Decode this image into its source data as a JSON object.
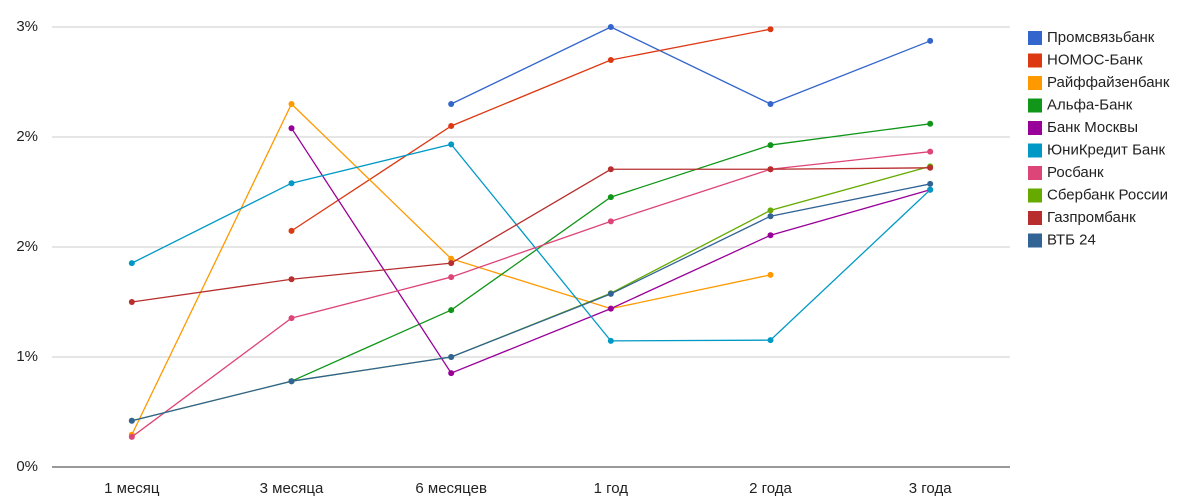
{
  "chart_data": {
    "type": "line",
    "categories": [
      "1 месяц",
      "3 месяца",
      "6 месяцев",
      "1 год",
      "2 года",
      "3 года"
    ],
    "ylim": [
      0,
      3
    ],
    "yticks": [
      {
        "value": 0,
        "label": "0%"
      },
      {
        "value": 0.75,
        "label": "1%"
      },
      {
        "value": 1.5,
        "label": "2%"
      },
      {
        "value": 2.25,
        "label": "2%"
      },
      {
        "value": 3,
        "label": "3%"
      }
    ],
    "grid": true,
    "legend": "right",
    "series": [
      {
        "name": "Промсвязьбанк",
        "color": "#3366cc",
        "values": [
          null,
          null,
          2.475,
          3.0,
          2.475,
          2.905
        ]
      },
      {
        "name": "НОМОС-Банк",
        "color": "#dc3912",
        "values": [
          null,
          1.61,
          2.325,
          2.775,
          2.985,
          null
        ]
      },
      {
        "name": "Райффайзенбанк",
        "color": "#ff9900",
        "values": [
          0.22,
          2.475,
          1.42,
          1.08,
          1.31,
          null
        ]
      },
      {
        "name": "Альфа-Банк",
        "color": "#109618",
        "values": [
          null,
          0.585,
          1.07,
          1.84,
          2.195,
          2.34
        ]
      },
      {
        "name": "Банк Москвы",
        "color": "#990099",
        "values": [
          null,
          2.31,
          0.64,
          1.08,
          1.58,
          1.89
        ]
      },
      {
        "name": "ЮниКредит Банк",
        "color": "#0099c6",
        "values": [
          1.39,
          1.935,
          2.2,
          0.86,
          0.865,
          1.89
        ]
      },
      {
        "name": "Росбанк",
        "color": "#dd4477",
        "values": [
          0.205,
          1.015,
          1.295,
          1.675,
          2.03,
          2.15
        ]
      },
      {
        "name": "Сбербанк России",
        "color": "#66aa00",
        "values": [
          0.315,
          0.585,
          0.75,
          1.185,
          1.75,
          2.05
        ]
      },
      {
        "name": "Газпромбанк",
        "color": "#b82e2e",
        "values": [
          1.125,
          1.28,
          1.39,
          2.03,
          2.03,
          2.04
        ]
      },
      {
        "name": "ВТБ 24",
        "color": "#316395",
        "values": [
          0.315,
          0.585,
          0.75,
          1.18,
          1.71,
          1.93
        ]
      }
    ]
  }
}
